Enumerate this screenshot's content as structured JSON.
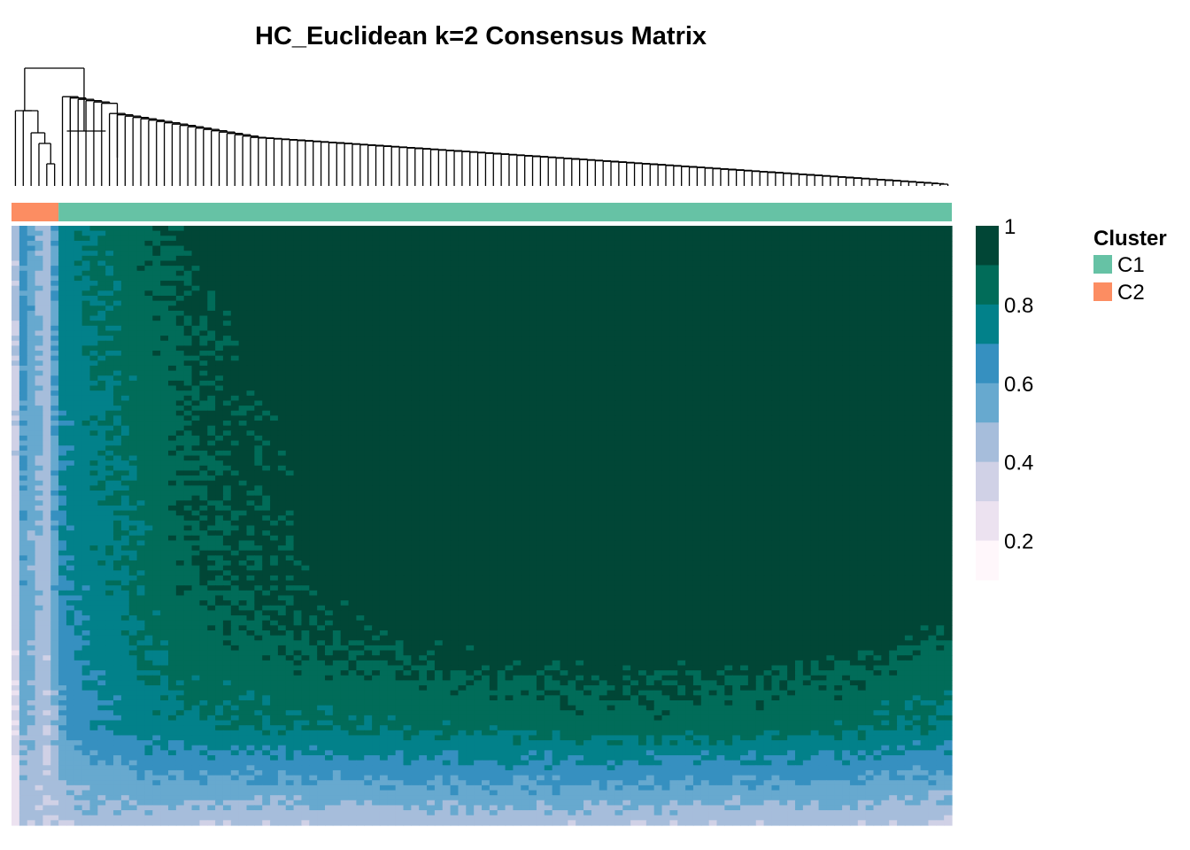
{
  "chart_data": {
    "type": "heatmap",
    "title": "HC_Euclidean k=2 Consensus Matrix",
    "colorbar": {
      "ticks": [
        "1",
        "0.8",
        "0.6",
        "0.4",
        "0.2"
      ],
      "range": [
        0.1,
        1.0
      ],
      "bins": [
        {
          "min": 0.9,
          "max": 1.0,
          "color": "#014636"
        },
        {
          "min": 0.8,
          "max": 0.9,
          "color": "#016C59"
        },
        {
          "min": 0.7,
          "max": 0.8,
          "color": "#02818A"
        },
        {
          "min": 0.6,
          "max": 0.7,
          "color": "#3690C0"
        },
        {
          "min": 0.5,
          "max": 0.6,
          "color": "#67A9CF"
        },
        {
          "min": 0.4,
          "max": 0.5,
          "color": "#A6BDDB"
        },
        {
          "min": 0.3,
          "max": 0.4,
          "color": "#D0D1E6"
        },
        {
          "min": 0.2,
          "max": 0.3,
          "color": "#ECE2F0"
        },
        {
          "min": 0.1,
          "max": 0.2,
          "color": "#FFF7FB"
        }
      ]
    },
    "legend": {
      "title": "Cluster",
      "placement": "right",
      "items": [
        {
          "label": "C1",
          "color": "#66C2A5"
        },
        {
          "label": "C2",
          "color": "#FC8D62"
        }
      ]
    },
    "n_samples": 120,
    "cluster_annotation": {
      "C2_count": 6,
      "C1_count": 114
    },
    "matrix_rows": [
      [
        0.45,
        0.65,
        0.45,
        0.75,
        0.82,
        0.85,
        0.9,
        0.95,
        0.97,
        1.0,
        1.0,
        1.0,
        1.0,
        1.0,
        1.0,
        1.0
      ],
      [
        0.4,
        0.62,
        0.45,
        0.74,
        0.8,
        0.83,
        0.87,
        0.92,
        0.95,
        0.99,
        1.0,
        1.0,
        1.0,
        1.0,
        1.0,
        1.0
      ],
      [
        0.38,
        0.6,
        0.45,
        0.72,
        0.78,
        0.82,
        0.86,
        0.91,
        0.94,
        0.98,
        1.0,
        1.0,
        1.0,
        1.0,
        1.0,
        1.0
      ],
      [
        0.36,
        0.58,
        0.45,
        0.7,
        0.77,
        0.8,
        0.85,
        0.9,
        0.93,
        0.97,
        0.99,
        1.0,
        1.0,
        1.0,
        1.0,
        1.0
      ],
      [
        0.34,
        0.56,
        0.44,
        0.68,
        0.75,
        0.79,
        0.84,
        0.89,
        0.92,
        0.96,
        0.98,
        0.99,
        1.0,
        1.0,
        0.98,
        0.97
      ],
      [
        0.32,
        0.55,
        0.43,
        0.66,
        0.73,
        0.77,
        0.82,
        0.86,
        0.89,
        0.92,
        0.94,
        0.95,
        0.95,
        0.93,
        0.9,
        0.88
      ],
      [
        0.3,
        0.52,
        0.42,
        0.6,
        0.68,
        0.72,
        0.76,
        0.78,
        0.8,
        0.82,
        0.84,
        0.85,
        0.84,
        0.82,
        0.8,
        0.78
      ],
      [
        0.22,
        0.45,
        0.4,
        0.42,
        0.45,
        0.45,
        0.44,
        0.42,
        0.42,
        0.44,
        0.44,
        0.42,
        0.42,
        0.44,
        0.42,
        0.4
      ]
    ]
  }
}
